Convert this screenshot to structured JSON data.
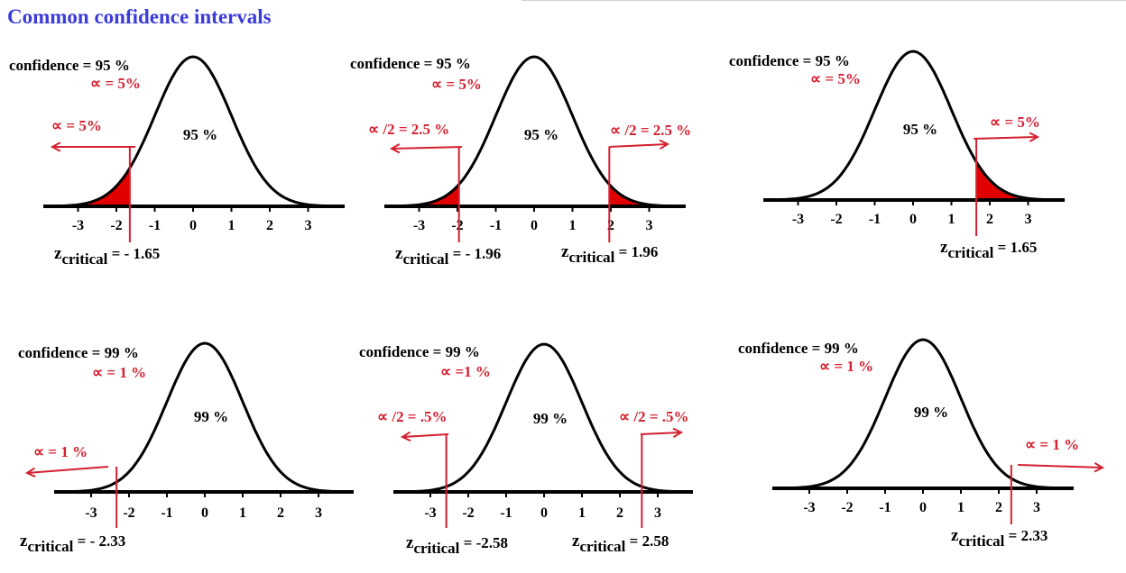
{
  "title": "Common confidence intervals",
  "colors": {
    "title": "#3b3bd9",
    "accent": "#d42030",
    "curve": "#000000",
    "shade": "#e00000"
  },
  "ticks": [
    "-3",
    "-2",
    "-1",
    "0",
    "1",
    "2",
    "3"
  ],
  "panels": [
    {
      "id": "p1",
      "confidence_text": "confidence = 95 %",
      "alpha_text": "∝ = 5%",
      "center_text": "95 %",
      "shade": "left",
      "z_values": [
        -1.65
      ],
      "tail_labels": [
        "∝ = 5%"
      ],
      "z_labels": [
        {
          "sub": "critical",
          "value": "- 1.65"
        }
      ]
    },
    {
      "id": "p2",
      "confidence_text": "confidence = 95 %",
      "alpha_text": "∝ = 5%",
      "center_text": "95 %",
      "shade": "both",
      "z_values": [
        -1.96,
        1.96
      ],
      "tail_labels": [
        "∝ /2 = 2.5 %",
        "∝ /2 = 2.5 %"
      ],
      "z_labels": [
        {
          "sub": "critical",
          "value": "- 1.96"
        },
        {
          "sub": "critical",
          "value": "1.96"
        }
      ]
    },
    {
      "id": "p3",
      "confidence_text": "confidence = 95 %",
      "alpha_text": "∝ = 5%",
      "center_text": "95 %",
      "shade": "right",
      "z_values": [
        1.65
      ],
      "tail_labels": [
        "∝ = 5%"
      ],
      "z_labels": [
        {
          "sub": "critical",
          "value": "1.65"
        }
      ]
    },
    {
      "id": "p4",
      "confidence_text": "confidence =  99 %",
      "alpha_text": "∝ = 1 %",
      "center_text": "99 %",
      "shade": "none",
      "z_values": [
        -2.33
      ],
      "tail_labels": [
        "∝ =  1 %"
      ],
      "z_labels": [
        {
          "sub": "critical",
          "value": "- 2.33"
        }
      ]
    },
    {
      "id": "p5",
      "confidence_text": "confidence = 99 %",
      "alpha_text": "∝ =1 %",
      "center_text": "99 %",
      "shade": "none",
      "z_values": [
        -2.58,
        2.58
      ],
      "tail_labels": [
        "∝ /2 = .5%",
        "∝ /2 = .5%"
      ],
      "z_labels": [
        {
          "sub": "critical",
          "value": "-2.58"
        },
        {
          "sub": "critical",
          "value": "2.58"
        }
      ]
    },
    {
      "id": "p6",
      "confidence_text": "confidence = 99 %",
      "alpha_text": "∝ = 1 %",
      "center_text": "99 %",
      "shade": "none",
      "z_values": [
        2.33
      ],
      "tail_labels": [
        "∝ = 1 %"
      ],
      "z_labels": [
        {
          "sub": "critical",
          "value": "2.33"
        }
      ]
    }
  ]
}
